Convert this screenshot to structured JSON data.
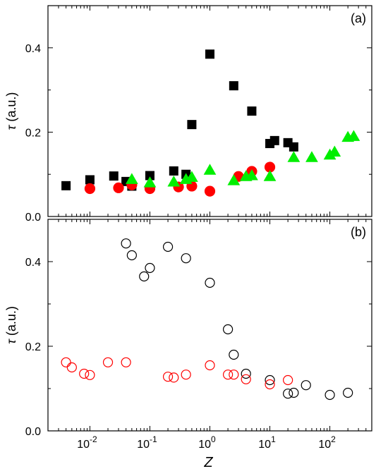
{
  "chart_data": [
    {
      "panel_label": "(a)",
      "type": "scatter",
      "xscale": "log",
      "xlim": [
        0.002,
        500
      ],
      "ylim": [
        0,
        0.5
      ],
      "ylabel": "τ (a.u.)",
      "yticks": [
        "0.0",
        "0.2",
        "0.4"
      ],
      "grid": false,
      "series": [
        {
          "marker": "square",
          "filled": true,
          "color": "#000000",
          "points": [
            [
              0.004,
              0.073
            ],
            [
              0.01,
              0.087
            ],
            [
              0.025,
              0.096
            ],
            [
              0.04,
              0.083
            ],
            [
              0.05,
              0.072
            ],
            [
              0.1,
              0.097
            ],
            [
              0.25,
              0.108
            ],
            [
              0.4,
              0.1
            ],
            [
              0.5,
              0.218
            ],
            [
              1.0,
              0.385
            ],
            [
              2.5,
              0.31
            ],
            [
              5.0,
              0.25
            ],
            [
              10,
              0.173
            ],
            [
              12,
              0.18
            ],
            [
              20,
              0.175
            ],
            [
              25,
              0.165
            ]
          ]
        },
        {
          "marker": "circle",
          "filled": true,
          "color": "#ff0000",
          "points": [
            [
              0.01,
              0.066
            ],
            [
              0.03,
              0.068
            ],
            [
              0.05,
              0.075
            ],
            [
              0.1,
              0.066
            ],
            [
              0.3,
              0.07
            ],
            [
              0.5,
              0.072
            ],
            [
              1.0,
              0.06
            ],
            [
              3.0,
              0.095
            ],
            [
              5.0,
              0.107
            ],
            [
              10,
              0.117
            ]
          ]
        },
        {
          "marker": "triangle",
          "filled": true,
          "color": "#00ee00",
          "points": [
            [
              0.05,
              0.088
            ],
            [
              0.1,
              0.08
            ],
            [
              0.25,
              0.082
            ],
            [
              0.4,
              0.088
            ],
            [
              0.5,
              0.093
            ],
            [
              1.0,
              0.11
            ],
            [
              2.5,
              0.085
            ],
            [
              4.0,
              0.095
            ],
            [
              5.0,
              0.097
            ],
            [
              10,
              0.095
            ],
            [
              25,
              0.14
            ],
            [
              50,
              0.14
            ],
            [
              100,
              0.146
            ],
            [
              120,
              0.153
            ],
            [
              200,
              0.188
            ],
            [
              250,
              0.19
            ]
          ]
        }
      ]
    },
    {
      "panel_label": "(b)",
      "type": "scatter",
      "xscale": "log",
      "xlim": [
        0.002,
        500
      ],
      "ylim": [
        0,
        0.5
      ],
      "xlabel": "Z",
      "ylabel": "τ (a.u.)",
      "yticks": [
        "0.0",
        "0.2",
        "0.4"
      ],
      "xticks": [
        {
          "base": "10",
          "exp": "-2"
        },
        {
          "base": "10",
          "exp": "-1"
        },
        {
          "base": "10",
          "exp": "0"
        },
        {
          "base": "10",
          "exp": "1"
        },
        {
          "base": "10",
          "exp": "2"
        }
      ],
      "grid": false,
      "series": [
        {
          "marker": "circle",
          "filled": false,
          "color": "#000000",
          "points": [
            [
              0.04,
              0.443
            ],
            [
              0.05,
              0.415
            ],
            [
              0.08,
              0.365
            ],
            [
              0.1,
              0.385
            ],
            [
              0.2,
              0.435
            ],
            [
              0.4,
              0.408
            ],
            [
              1.0,
              0.35
            ],
            [
              2.0,
              0.24
            ],
            [
              2.5,
              0.18
            ],
            [
              4.0,
              0.135
            ],
            [
              10,
              0.12
            ],
            [
              20,
              0.088
            ],
            [
              25,
              0.09
            ],
            [
              40,
              0.108
            ],
            [
              100,
              0.085
            ],
            [
              200,
              0.09
            ]
          ]
        },
        {
          "marker": "circle",
          "filled": false,
          "color": "#ff0000",
          "points": [
            [
              0.004,
              0.162
            ],
            [
              0.005,
              0.15
            ],
            [
              0.008,
              0.135
            ],
            [
              0.01,
              0.132
            ],
            [
              0.02,
              0.162
            ],
            [
              0.04,
              0.162
            ],
            [
              0.2,
              0.128
            ],
            [
              0.25,
              0.126
            ],
            [
              0.4,
              0.133
            ],
            [
              1.0,
              0.155
            ],
            [
              2.0,
              0.133
            ],
            [
              2.5,
              0.133
            ],
            [
              4.0,
              0.122
            ],
            [
              10,
              0.11
            ],
            [
              20,
              0.12
            ]
          ]
        }
      ]
    }
  ]
}
